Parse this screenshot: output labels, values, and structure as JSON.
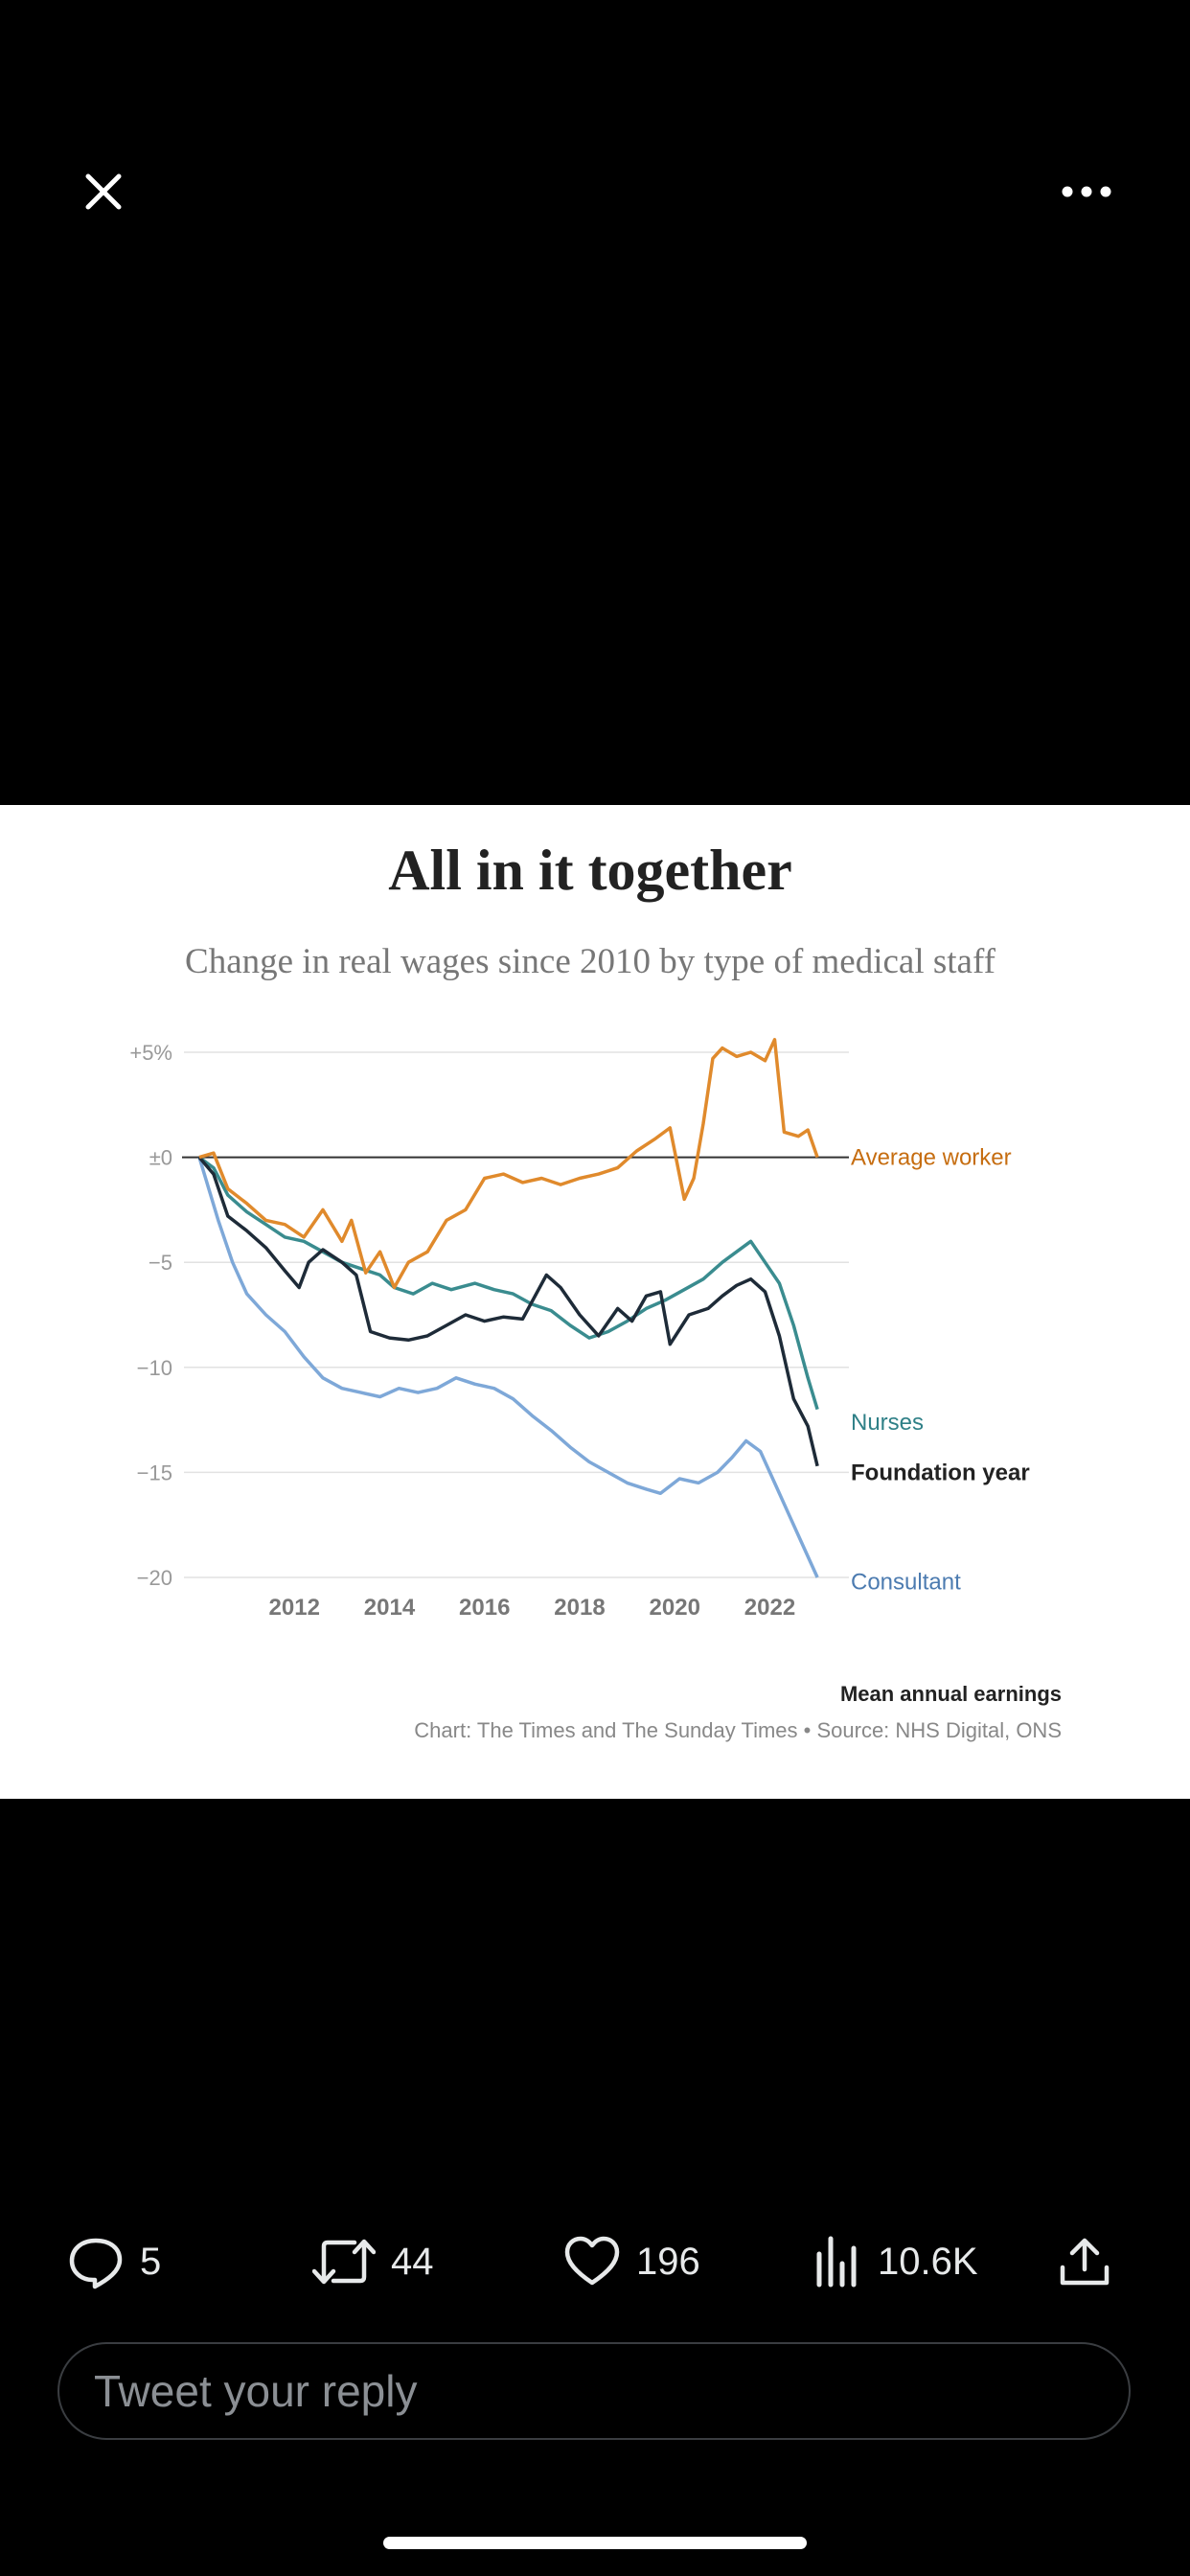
{
  "top_bar": {
    "close_icon": "close-icon",
    "more_icon": "more-horizontal-icon"
  },
  "chart_image": {
    "title": "All in it together",
    "subtitle": "Change in real wages since 2010 by type of medical staff",
    "footnote": "Mean annual earnings",
    "credit": "Chart: The Times and The Sunday Times • Source: NHS Digital, ONS"
  },
  "chart_data": {
    "type": "line",
    "title": "All in it together",
    "subtitle": "Change in real wages since 2010 by type of medical staff",
    "x_ticks": [
      "2012",
      "2014",
      "2016",
      "2018",
      "2020",
      "2022"
    ],
    "y_ticks": [
      "+5%",
      "±0",
      "−5",
      "−10",
      "−15",
      "−20"
    ],
    "xlim": [
      2010.0,
      2023.3
    ],
    "ylim": [
      -20,
      5
    ],
    "grid": true,
    "series": [
      {
        "name": "Average worker",
        "color": "#e08a2c",
        "points": [
          [
            2010.0,
            0
          ],
          [
            2010.3,
            0.2
          ],
          [
            2010.6,
            -1.5
          ],
          [
            2011.0,
            -2.2
          ],
          [
            2011.4,
            -3.0
          ],
          [
            2011.8,
            -3.2
          ],
          [
            2012.2,
            -3.8
          ],
          [
            2012.6,
            -2.5
          ],
          [
            2013.0,
            -4.0
          ],
          [
            2013.2,
            -3.0
          ],
          [
            2013.5,
            -5.5
          ],
          [
            2013.8,
            -4.5
          ],
          [
            2014.1,
            -6.2
          ],
          [
            2014.4,
            -5.0
          ],
          [
            2014.8,
            -4.5
          ],
          [
            2015.2,
            -3.0
          ],
          [
            2015.6,
            -2.5
          ],
          [
            2016.0,
            -1.0
          ],
          [
            2016.4,
            -0.8
          ],
          [
            2016.8,
            -1.2
          ],
          [
            2017.2,
            -1.0
          ],
          [
            2017.6,
            -1.3
          ],
          [
            2018.0,
            -1.0
          ],
          [
            2018.4,
            -0.8
          ],
          [
            2018.8,
            -0.5
          ],
          [
            2019.2,
            0.3
          ],
          [
            2019.6,
            0.9
          ],
          [
            2019.9,
            1.4
          ],
          [
            2020.2,
            -2.0
          ],
          [
            2020.4,
            -1.0
          ],
          [
            2020.6,
            1.6
          ],
          [
            2020.8,
            4.7
          ],
          [
            2021.0,
            5.2
          ],
          [
            2021.3,
            4.8
          ],
          [
            2021.6,
            5.0
          ],
          [
            2021.9,
            4.6
          ],
          [
            2022.1,
            5.6
          ],
          [
            2022.3,
            1.2
          ],
          [
            2022.6,
            1.0
          ],
          [
            2022.8,
            1.3
          ],
          [
            2023.0,
            0
          ]
        ]
      },
      {
        "name": "Nurses",
        "color": "#3a8c8f",
        "points": [
          [
            2010.0,
            0
          ],
          [
            2010.3,
            -0.5
          ],
          [
            2010.6,
            -1.8
          ],
          [
            2011.0,
            -2.6
          ],
          [
            2011.4,
            -3.2
          ],
          [
            2011.8,
            -3.8
          ],
          [
            2012.2,
            -4.0
          ],
          [
            2012.6,
            -4.5
          ],
          [
            2013.0,
            -5.0
          ],
          [
            2013.4,
            -5.3
          ],
          [
            2013.8,
            -5.6
          ],
          [
            2014.1,
            -6.2
          ],
          [
            2014.5,
            -6.5
          ],
          [
            2014.9,
            -6.0
          ],
          [
            2015.3,
            -6.3
          ],
          [
            2015.8,
            -6.0
          ],
          [
            2016.2,
            -6.3
          ],
          [
            2016.6,
            -6.5
          ],
          [
            2017.0,
            -7.0
          ],
          [
            2017.4,
            -7.3
          ],
          [
            2017.8,
            -8.0
          ],
          [
            2018.2,
            -8.6
          ],
          [
            2018.6,
            -8.3
          ],
          [
            2019.0,
            -7.8
          ],
          [
            2019.4,
            -7.2
          ],
          [
            2019.8,
            -6.8
          ],
          [
            2020.2,
            -6.3
          ],
          [
            2020.6,
            -5.8
          ],
          [
            2021.0,
            -5.0
          ],
          [
            2021.3,
            -4.5
          ],
          [
            2021.6,
            -4.0
          ],
          [
            2021.9,
            -5.0
          ],
          [
            2022.2,
            -6.0
          ],
          [
            2022.5,
            -8.0
          ],
          [
            2022.8,
            -10.5
          ],
          [
            2023.0,
            -12.0
          ]
        ]
      },
      {
        "name": "Foundation year",
        "color": "#1e2b38",
        "points": [
          [
            2010.0,
            0
          ],
          [
            2010.3,
            -0.8
          ],
          [
            2010.6,
            -2.8
          ],
          [
            2011.0,
            -3.5
          ],
          [
            2011.4,
            -4.3
          ],
          [
            2011.8,
            -5.4
          ],
          [
            2012.1,
            -6.2
          ],
          [
            2012.3,
            -5.0
          ],
          [
            2012.6,
            -4.4
          ],
          [
            2013.0,
            -5.0
          ],
          [
            2013.3,
            -5.6
          ],
          [
            2013.6,
            -8.3
          ],
          [
            2014.0,
            -8.6
          ],
          [
            2014.4,
            -8.7
          ],
          [
            2014.8,
            -8.5
          ],
          [
            2015.2,
            -8.0
          ],
          [
            2015.6,
            -7.5
          ],
          [
            2016.0,
            -7.8
          ],
          [
            2016.4,
            -7.6
          ],
          [
            2016.8,
            -7.7
          ],
          [
            2017.3,
            -5.6
          ],
          [
            2017.6,
            -6.2
          ],
          [
            2018.0,
            -7.5
          ],
          [
            2018.4,
            -8.5
          ],
          [
            2018.8,
            -7.2
          ],
          [
            2019.1,
            -7.8
          ],
          [
            2019.4,
            -6.6
          ],
          [
            2019.7,
            -6.4
          ],
          [
            2019.9,
            -8.9
          ],
          [
            2020.3,
            -7.5
          ],
          [
            2020.7,
            -7.2
          ],
          [
            2021.0,
            -6.6
          ],
          [
            2021.3,
            -6.1
          ],
          [
            2021.6,
            -5.8
          ],
          [
            2021.9,
            -6.4
          ],
          [
            2022.2,
            -8.5
          ],
          [
            2022.5,
            -11.5
          ],
          [
            2022.8,
            -12.8
          ],
          [
            2023.0,
            -14.7
          ]
        ]
      },
      {
        "name": "Consultant",
        "color": "#7ea8d8",
        "points": [
          [
            2010.0,
            0
          ],
          [
            2010.2,
            -1.5
          ],
          [
            2010.4,
            -3.0
          ],
          [
            2010.7,
            -5.0
          ],
          [
            2011.0,
            -6.5
          ],
          [
            2011.4,
            -7.5
          ],
          [
            2011.8,
            -8.3
          ],
          [
            2012.2,
            -9.5
          ],
          [
            2012.6,
            -10.5
          ],
          [
            2013.0,
            -11.0
          ],
          [
            2013.4,
            -11.2
          ],
          [
            2013.8,
            -11.4
          ],
          [
            2014.2,
            -11.0
          ],
          [
            2014.6,
            -11.2
          ],
          [
            2015.0,
            -11.0
          ],
          [
            2015.4,
            -10.5
          ],
          [
            2015.8,
            -10.8
          ],
          [
            2016.2,
            -11.0
          ],
          [
            2016.6,
            -11.5
          ],
          [
            2017.0,
            -12.3
          ],
          [
            2017.4,
            -13.0
          ],
          [
            2017.8,
            -13.8
          ],
          [
            2018.2,
            -14.5
          ],
          [
            2018.6,
            -15.0
          ],
          [
            2019.0,
            -15.5
          ],
          [
            2019.4,
            -15.8
          ],
          [
            2019.7,
            -16.0
          ],
          [
            2020.1,
            -15.3
          ],
          [
            2020.5,
            -15.5
          ],
          [
            2020.9,
            -15.0
          ],
          [
            2021.2,
            -14.3
          ],
          [
            2021.5,
            -13.5
          ],
          [
            2021.8,
            -14.0
          ],
          [
            2022.1,
            -15.5
          ],
          [
            2022.4,
            -17.0
          ],
          [
            2022.7,
            -18.5
          ],
          [
            2023.0,
            -20.0
          ]
        ]
      }
    ]
  },
  "actions": {
    "reply_count": "5",
    "retweet_count": "44",
    "like_count": "196",
    "views_count": "10.6K"
  },
  "reply": {
    "placeholder": "Tweet your reply"
  }
}
